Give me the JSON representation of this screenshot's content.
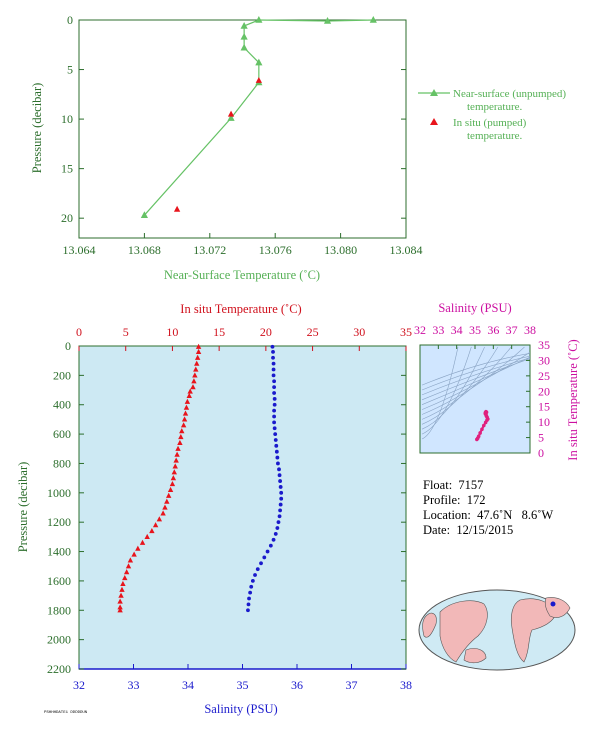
{
  "chart_data": [
    {
      "type": "line",
      "xlabel": "Near-Surface Temperature (˚C)",
      "ylabel": "Pressure (decibar)",
      "xlim": [
        13.064,
        13.084
      ],
      "ylim": [
        22,
        0
      ],
      "x_ticks": [
        "13.064",
        "13.068",
        "13.072",
        "13.076",
        "13.080",
        "13.084"
      ],
      "y_ticks": [
        "0",
        "5",
        "10",
        "15",
        "20"
      ],
      "series": [
        {
          "name": "Near-surface (unpumped) temperature.",
          "color": "#66c266",
          "marker": "triangle",
          "points": [
            [
              13.082,
              0.0
            ],
            [
              13.0792,
              0.1
            ],
            [
              13.075,
              0.0
            ],
            [
              13.0741,
              0.6
            ],
            [
              13.0741,
              1.7
            ],
            [
              13.0741,
              2.8
            ],
            [
              13.075,
              4.3
            ],
            [
              13.075,
              6.3
            ],
            [
              13.0733,
              9.9
            ],
            [
              13.068,
              19.7
            ]
          ]
        },
        {
          "name": "In situ (pumped) temperature.",
          "color": "#e8141c",
          "marker": "triangle-only",
          "points": [
            [
              13.075,
              6.1
            ],
            [
              13.0733,
              9.5
            ],
            [
              13.07,
              19.1
            ]
          ]
        }
      ]
    },
    {
      "type": "scatter",
      "title_top": "In situ Temperature (˚C)",
      "xlabel": "Salinity (PSU)",
      "ylabel": "Pressure (decibar)",
      "temp_lim": [
        0,
        35
      ],
      "sal_lim": [
        32,
        38
      ],
      "ylim": [
        2200,
        0
      ],
      "temp_ticks": [
        "0",
        "5",
        "10",
        "15",
        "20",
        "25",
        "30",
        "35"
      ],
      "sal_ticks": [
        "32",
        "33",
        "34",
        "35",
        "36",
        "37",
        "38"
      ],
      "p_ticks": [
        "0",
        "200",
        "400",
        "600",
        "800",
        "1000",
        "1200",
        "1400",
        "1600",
        "1800",
        "2000",
        "2200"
      ],
      "temp_color": "#e8141c",
      "sal_color": "#1a1acc",
      "temperature": [
        [
          12.8,
          5
        ],
        [
          12.8,
          40
        ],
        [
          12.7,
          80
        ],
        [
          12.6,
          120
        ],
        [
          12.5,
          160
        ],
        [
          12.4,
          200
        ],
        [
          12.3,
          240
        ],
        [
          12.2,
          280
        ],
        [
          11.9,
          310
        ],
        [
          11.8,
          340
        ],
        [
          11.6,
          380
        ],
        [
          11.5,
          420
        ],
        [
          11.4,
          460
        ],
        [
          11.3,
          500
        ],
        [
          11.2,
          540
        ],
        [
          11.0,
          580
        ],
        [
          10.9,
          620
        ],
        [
          10.8,
          660
        ],
        [
          10.6,
          700
        ],
        [
          10.5,
          740
        ],
        [
          10.4,
          780
        ],
        [
          10.3,
          820
        ],
        [
          10.2,
          860
        ],
        [
          10.1,
          900
        ],
        [
          10.0,
          940
        ],
        [
          9.8,
          980
        ],
        [
          9.6,
          1020
        ],
        [
          9.4,
          1060
        ],
        [
          9.2,
          1100
        ],
        [
          9.0,
          1140
        ],
        [
          8.6,
          1180
        ],
        [
          8.2,
          1220
        ],
        [
          7.8,
          1260
        ],
        [
          7.3,
          1300
        ],
        [
          6.8,
          1340
        ],
        [
          6.3,
          1380
        ],
        [
          5.9,
          1420
        ],
        [
          5.5,
          1460
        ],
        [
          5.3,
          1500
        ],
        [
          5.1,
          1540
        ],
        [
          4.9,
          1580
        ],
        [
          4.7,
          1620
        ],
        [
          4.6,
          1660
        ],
        [
          4.5,
          1700
        ],
        [
          4.4,
          1740
        ],
        [
          4.4,
          1780
        ],
        [
          4.4,
          1800
        ]
      ],
      "salinity": [
        [
          35.55,
          5
        ],
        [
          35.56,
          40
        ],
        [
          35.56,
          80
        ],
        [
          35.57,
          120
        ],
        [
          35.57,
          160
        ],
        [
          35.57,
          200
        ],
        [
          35.58,
          240
        ],
        [
          35.58,
          280
        ],
        [
          35.58,
          320
        ],
        [
          35.59,
          360
        ],
        [
          35.59,
          400
        ],
        [
          35.58,
          440
        ],
        [
          35.58,
          480
        ],
        [
          35.58,
          520
        ],
        [
          35.59,
          560
        ],
        [
          35.6,
          600
        ],
        [
          35.61,
          640
        ],
        [
          35.62,
          680
        ],
        [
          35.63,
          720
        ],
        [
          35.64,
          760
        ],
        [
          35.65,
          800
        ],
        [
          35.67,
          840
        ],
        [
          35.68,
          880
        ],
        [
          35.69,
          920
        ],
        [
          35.7,
          960
        ],
        [
          35.71,
          1000
        ],
        [
          35.71,
          1040
        ],
        [
          35.7,
          1080
        ],
        [
          35.69,
          1120
        ],
        [
          35.68,
          1160
        ],
        [
          35.66,
          1200
        ],
        [
          35.64,
          1240
        ],
        [
          35.61,
          1280
        ],
        [
          35.57,
          1320
        ],
        [
          35.52,
          1360
        ],
        [
          35.46,
          1400
        ],
        [
          35.4,
          1440
        ],
        [
          35.34,
          1480
        ],
        [
          35.28,
          1520
        ],
        [
          35.23,
          1560
        ],
        [
          35.19,
          1600
        ],
        [
          35.16,
          1640
        ],
        [
          35.14,
          1680
        ],
        [
          35.12,
          1720
        ],
        [
          35.11,
          1760
        ],
        [
          35.1,
          1800
        ]
      ]
    },
    {
      "type": "scatter",
      "title_top": "Salinity (PSU)",
      "ylabel_right": "In situ Temperature (˚C)",
      "sal_lim": [
        32,
        38
      ],
      "temp_lim": [
        0,
        35
      ],
      "sal_ticks": [
        "32",
        "33",
        "34",
        "35",
        "36",
        "37",
        "38"
      ],
      "temp_ticks": [
        "0",
        "5",
        "10",
        "15",
        "20",
        "25",
        "30",
        "35"
      ],
      "color": "#e0207e",
      "points": [
        [
          35.1,
          4.4
        ],
        [
          35.15,
          4.8
        ],
        [
          35.2,
          5.4
        ],
        [
          35.28,
          6.5
        ],
        [
          35.38,
          7.7
        ],
        [
          35.48,
          8.9
        ],
        [
          35.58,
          9.9
        ],
        [
          35.65,
          10.6
        ],
        [
          35.7,
          11.0
        ],
        [
          35.66,
          11.6
        ],
        [
          35.62,
          12.0
        ],
        [
          35.6,
          12.4
        ],
        [
          35.58,
          12.7
        ],
        [
          35.56,
          12.8
        ],
        [
          35.57,
          13.1
        ],
        [
          35.6,
          13.4
        ],
        [
          35.63,
          13.2
        ]
      ]
    }
  ],
  "legend": {
    "unpumped_line1": "Near-surface (unpumped)",
    "unpumped_line2": "temperature.",
    "pumped_line1": "In situ (pumped)",
    "pumped_line2": "temperature."
  },
  "info": {
    "float": "Float:  7157",
    "profile": "Profile:  172",
    "location": "Location:  47.6˚N   8.6˚W",
    "date": "Date:  12/15/2015"
  },
  "footer": "PSHHHDATE1 DDDDDUN"
}
